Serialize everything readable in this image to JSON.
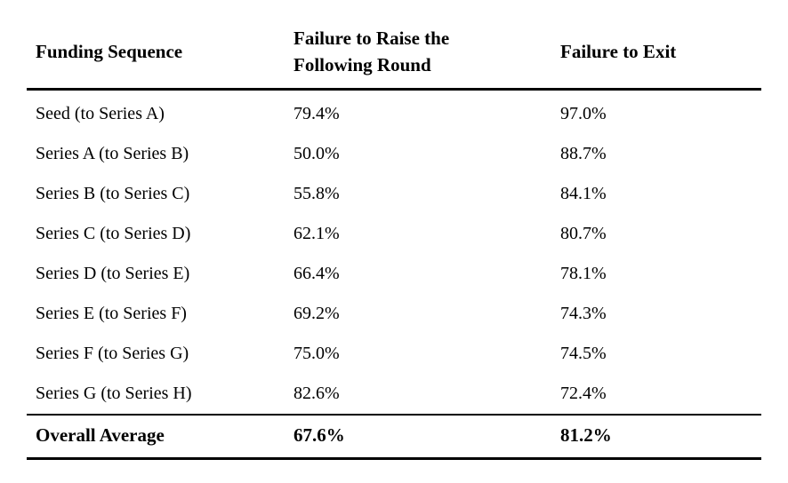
{
  "chart_data": {
    "type": "table",
    "title": "",
    "columns": [
      "Funding Sequence",
      "Failure to Raise the Following Round",
      "Failure to Exit"
    ],
    "rows": [
      {
        "funding_sequence": "Seed (to Series A)",
        "failure_to_raise": "79.4%",
        "failure_to_exit": "97.0%"
      },
      {
        "funding_sequence": "Series A (to Series B)",
        "failure_to_raise": "50.0%",
        "failure_to_exit": "88.7%"
      },
      {
        "funding_sequence": "Series B (to Series C)",
        "failure_to_raise": "55.8%",
        "failure_to_exit": "84.1%"
      },
      {
        "funding_sequence": "Series C (to Series D)",
        "failure_to_raise": "62.1%",
        "failure_to_exit": "80.7%"
      },
      {
        "funding_sequence": "Series D (to Series E)",
        "failure_to_raise": "66.4%",
        "failure_to_exit": "78.1%"
      },
      {
        "funding_sequence": "Series E (to Series F)",
        "failure_to_raise": "69.2%",
        "failure_to_exit": "74.3%"
      },
      {
        "funding_sequence": "Series F (to Series G)",
        "failure_to_raise": "75.0%",
        "failure_to_exit": "74.5%"
      },
      {
        "funding_sequence": "Series G (to Series H)",
        "failure_to_raise": "82.6%",
        "failure_to_exit": "72.4%"
      }
    ],
    "footer": {
      "funding_sequence": "Overall Average",
      "failure_to_raise": "67.6%",
      "failure_to_exit": "81.2%"
    },
    "colors": {
      "text": "#000000",
      "background": "#ffffff",
      "rule": "#000000"
    }
  }
}
